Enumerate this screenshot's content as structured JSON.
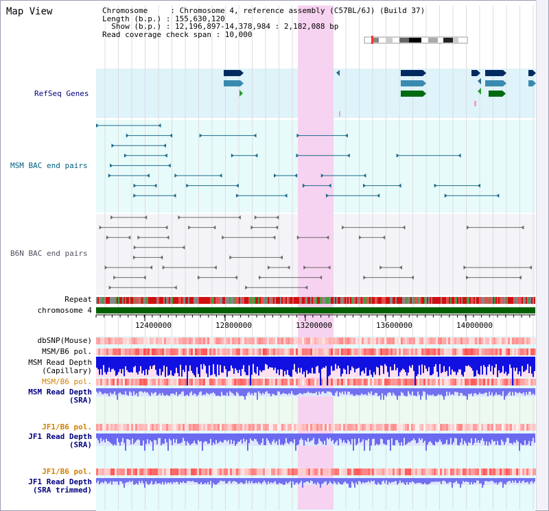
{
  "view_title": "Map View",
  "info": {
    "chromosome": "Chromosome     : Chromosome 4, reference assembly (C57BL/6J) (Build 37)",
    "length": "Length (b.p.) : 155,630,120",
    "show": "  Show (b.p.) : 12,196,897-14,378,984 : 2,182,088 bp",
    "coverage": "Read coverage check span : 10,000"
  },
  "tracks": {
    "refseq": "RefSeq Genes",
    "msm_bac": "MSM BAC end pairs",
    "b6n_bac": "B6N BAC end pairs",
    "repeat": "Repeat",
    "chromosome": "chromosome 4",
    "dbsnp": "dbSNP(Mouse)",
    "msm_b6_pol_1": "MSM/B6 pol.",
    "msm_depth_cap_1": "MSM Read Depth",
    "msm_depth_cap_2": "(Capillary)",
    "msm_b6_pol_2": "MSM/B6 pol.",
    "msm_depth_sra_1": "MSM Read Depth",
    "msm_depth_sra_2": "(SRA)",
    "jf1_b6_pol_1": "JF1/B6 pol.",
    "jf1_depth_sra_1": "JF1 Read Depth",
    "jf1_depth_sra_2": "(SRA)",
    "jf1_b6_pol_2": "JF1/B6 pol.",
    "jf1_depth_trim_1": "JF1 Read Depth",
    "jf1_depth_trim_2": "(SRA trimmed)"
  },
  "axis": {
    "ticks": [
      "12400000",
      "12800000",
      "13200000",
      "13600000",
      "14000000"
    ]
  },
  "colors": {
    "title_blue": "#000080",
    "teal_label": "#006080",
    "gray_label": "#505060",
    "orange_label": "#d08000",
    "refseq_bg": "#dff3fa",
    "bac_bg": "#e8fbfb",
    "highlight": "#f6d3f0",
    "chromosome_green": "#006000"
  }
}
